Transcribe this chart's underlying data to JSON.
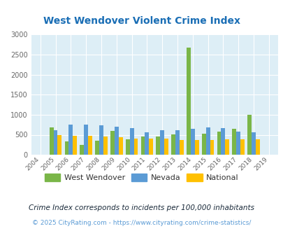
{
  "title": "West Wendover Violent Crime Index",
  "years": [
    2004,
    2005,
    2006,
    2007,
    2008,
    2009,
    2010,
    2011,
    2012,
    2013,
    2014,
    2015,
    2016,
    2017,
    2018,
    2019
  ],
  "west_wendover": [
    0,
    680,
    330,
    250,
    350,
    600,
    380,
    460,
    460,
    510,
    2670,
    530,
    580,
    640,
    990,
    0
  ],
  "nevada": [
    0,
    620,
    760,
    760,
    730,
    700,
    660,
    560,
    620,
    610,
    640,
    690,
    660,
    580,
    560,
    0
  ],
  "national": [
    0,
    490,
    480,
    480,
    460,
    440,
    410,
    400,
    400,
    370,
    370,
    370,
    390,
    390,
    390,
    0
  ],
  "bar_color_ww": "#7ab648",
  "bar_color_nv": "#5b9bd5",
  "bar_color_na": "#ffc000",
  "bg_color": "#ddeef6",
  "ylim": [
    0,
    3000
  ],
  "yticks": [
    0,
    500,
    1000,
    1500,
    2000,
    2500,
    3000
  ],
  "legend_labels": [
    "West Wendover",
    "Nevada",
    "National"
  ],
  "footnote1": "Crime Index corresponds to incidents per 100,000 inhabitants",
  "footnote2": "© 2025 CityRating.com - https://www.cityrating.com/crime-statistics/",
  "title_color": "#1a6eb5",
  "footnote1_color": "#1a2a3a",
  "footnote2_color": "#5b9bd5"
}
